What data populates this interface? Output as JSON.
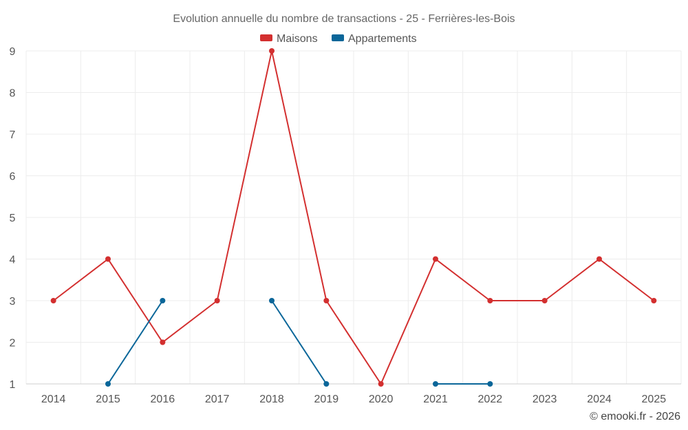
{
  "chart_data": {
    "type": "line",
    "title": "Evolution annuelle du nombre de transactions - 25 - Ferrières-les-Bois",
    "categories": [
      "2014",
      "2015",
      "2016",
      "2017",
      "2018",
      "2019",
      "2020",
      "2021",
      "2022",
      "2023",
      "2024",
      "2025"
    ],
    "series": [
      {
        "name": "Maisons",
        "color": "#d32f2f",
        "values": [
          3,
          4,
          2,
          3,
          9,
          3,
          1,
          4,
          3,
          3,
          4,
          3
        ]
      },
      {
        "name": "Appartements",
        "color": "#0a6699",
        "values": [
          null,
          1,
          3,
          null,
          3,
          1,
          null,
          1,
          1,
          null,
          null,
          null
        ]
      }
    ],
    "ylim": [
      1,
      9
    ],
    "yticks": [
      "1",
      "2",
      "3",
      "4",
      "5",
      "6",
      "7",
      "8",
      "9"
    ],
    "grid": true,
    "legend": "top-center"
  },
  "credit": "© emooki.fr - 2026"
}
